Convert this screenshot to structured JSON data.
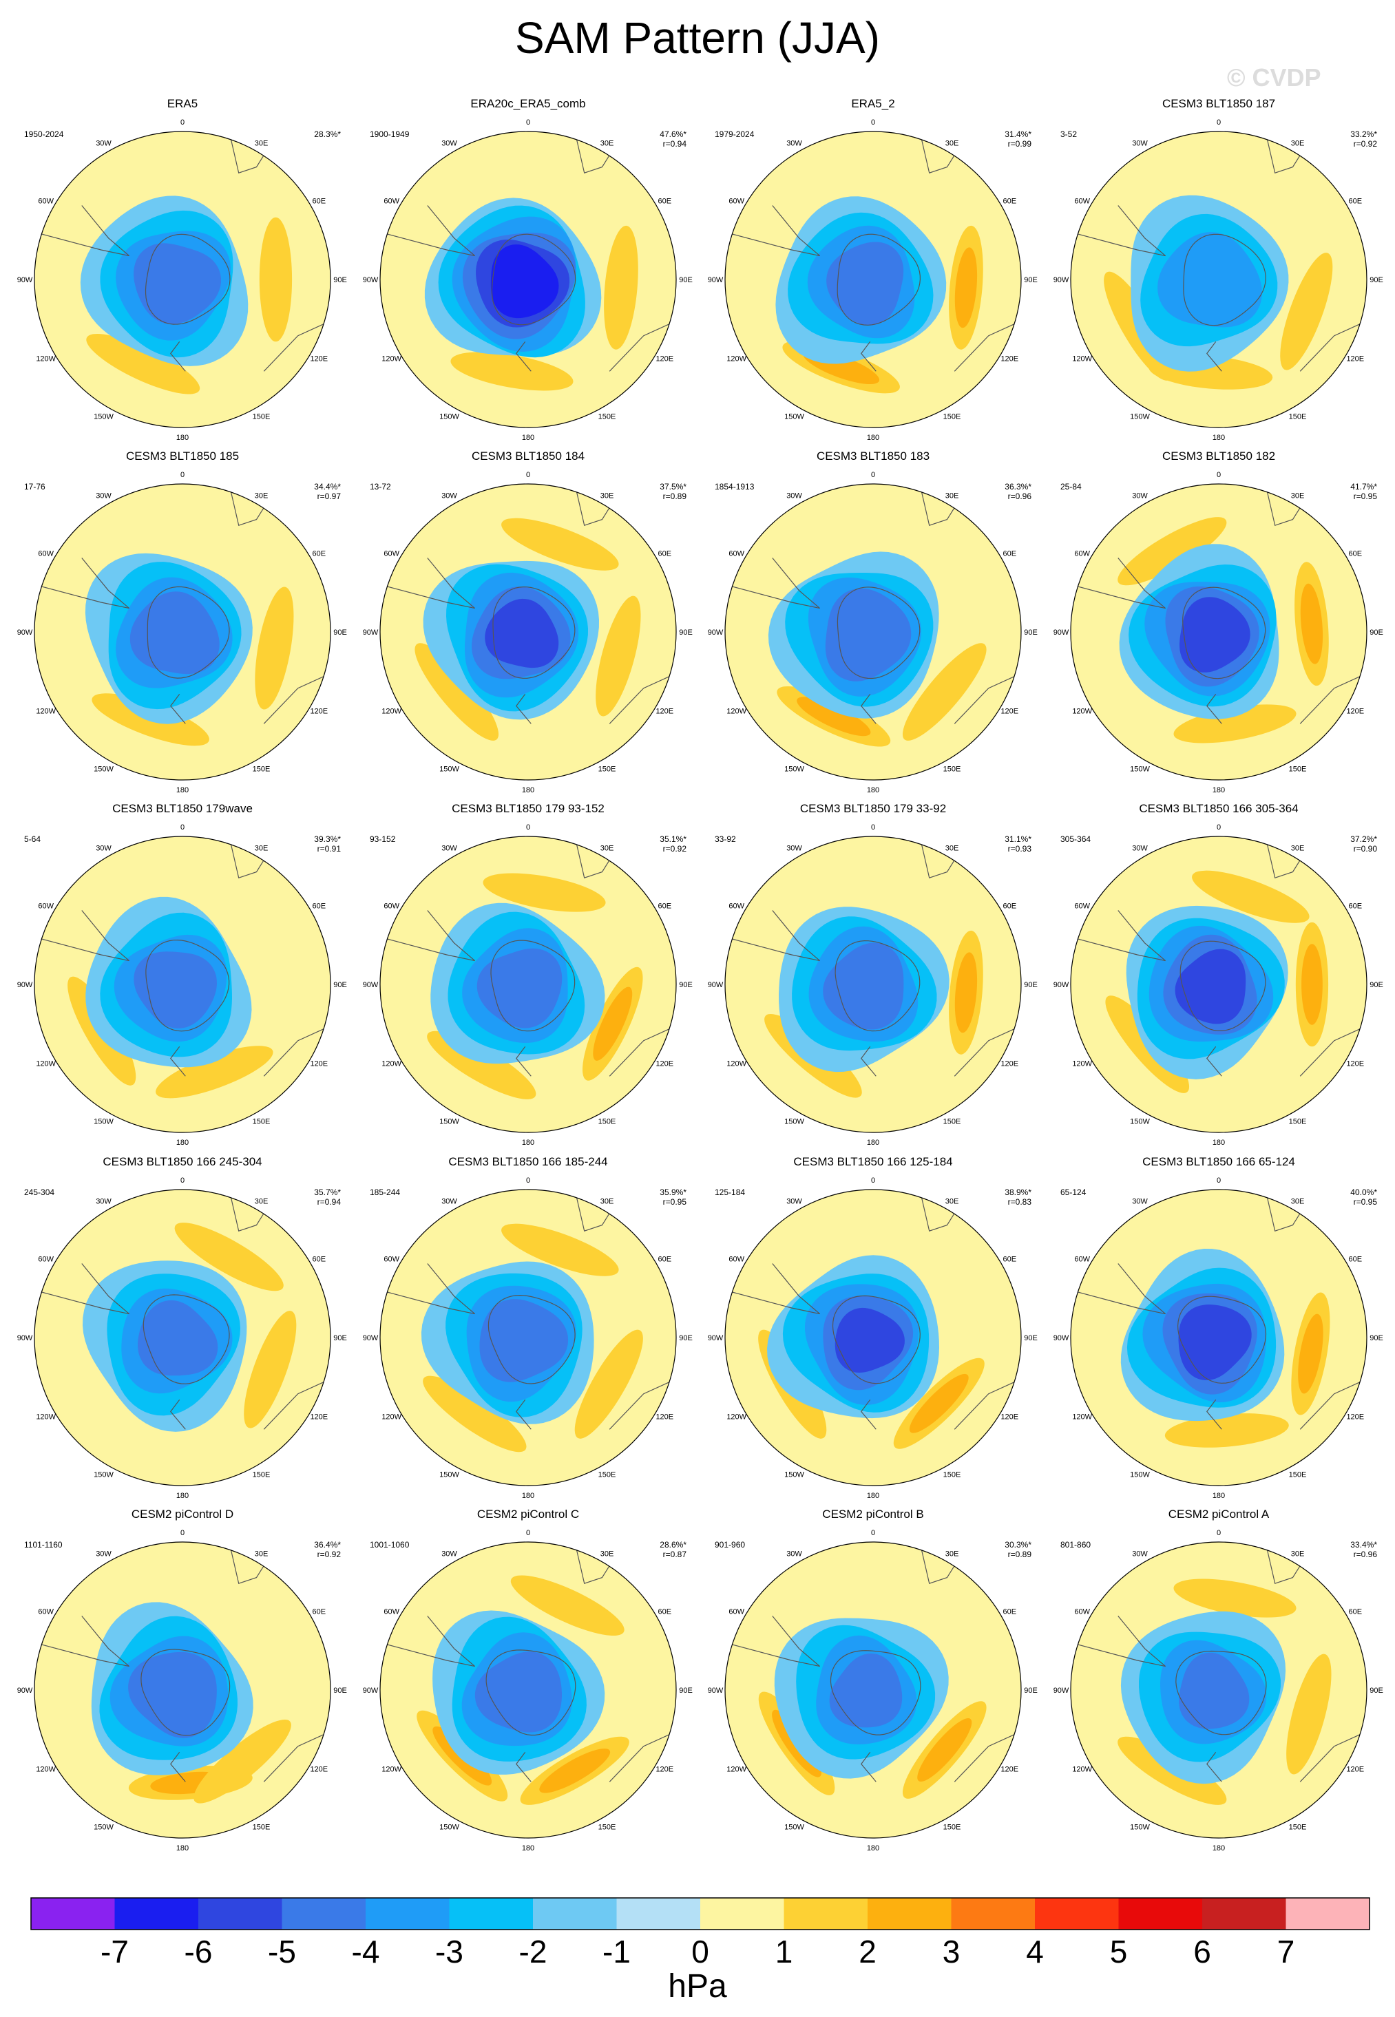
{
  "title": "SAM Pattern (JJA)",
  "watermark": "© CVDP",
  "colorbar": {
    "labels": [
      "-7",
      "-6",
      "-5",
      "-4",
      "-3",
      "-2",
      "-1",
      "0",
      "1",
      "2",
      "3",
      "4",
      "5",
      "6",
      "7"
    ],
    "colors": [
      "#8a22f0",
      "#1a1ef0",
      "#2f46e0",
      "#3a7ae8",
      "#1f9cf7",
      "#06c0f7",
      "#6ec9f3",
      "#b4e0f6",
      "#fdf5a1",
      "#fdd134",
      "#fdb00f",
      "#fd7a13",
      "#fd3510",
      "#e80a0a",
      "#c82020",
      "#fdb3b8"
    ],
    "units": "hPa"
  },
  "longitude_labels": [
    "0",
    "30E",
    "60E",
    "90E",
    "120E",
    "150E",
    "180",
    "150W",
    "120W",
    "90W",
    "60W",
    "30W"
  ],
  "chart_data": {
    "type": "heatmap",
    "title": "SAM Pattern (JJA)",
    "projection": "south polar stereographic",
    "units": "hPa",
    "contour_levels": [
      -7,
      -6,
      -5,
      -4,
      -3,
      -2,
      -1,
      0,
      1,
      2,
      3,
      4,
      5,
      6,
      7
    ],
    "panels": [
      {
        "name": "ERA5",
        "period": "1950-2024",
        "pct": "28.3%*",
        "r": "",
        "min": -4.5,
        "peaks": [
          {
            "lon": 90,
            "v": 1.5
          },
          {
            "lon": 205,
            "v": 1.4
          }
        ]
      },
      {
        "name": "ERA20c_ERA5_comb",
        "period": "1900-1949",
        "pct": "47.6%*",
        "r": "r=0.94",
        "min": -6.5,
        "peaks": [
          {
            "lon": 95,
            "v": 1.2
          },
          {
            "lon": 190,
            "v": 1.1
          }
        ]
      },
      {
        "name": "ERA5_2",
        "period": "1979-2024",
        "pct": "31.4%*",
        "r": "r=0.99",
        "min": -4.3,
        "peaks": [
          {
            "lon": 95,
            "v": 2.4
          },
          {
            "lon": 200,
            "v": 2.1
          }
        ]
      },
      {
        "name": "CESM3 BLT1850 187",
        "period": "3-52",
        "pct": "33.2%*",
        "r": "r=0.92",
        "min": -3.7,
        "peaks": [
          {
            "lon": 110,
            "v": 1.7
          },
          {
            "lon": 185,
            "v": 1.7
          },
          {
            "lon": 240,
            "v": 1.6
          }
        ]
      },
      {
        "name": "CESM3 BLT1850 185",
        "period": "17-76",
        "pct": "34.4%*",
        "r": "r=0.97",
        "min": -4.6,
        "peaks": [
          {
            "lon": 100,
            "v": 1.6
          },
          {
            "lon": 200,
            "v": 1.7
          }
        ]
      },
      {
        "name": "CESM3 BLT1850 184",
        "period": "13-72",
        "pct": "37.5%*",
        "r": "r=0.89",
        "min": -5.2,
        "peaks": [
          {
            "lon": 20,
            "v": 1.3
          },
          {
            "lon": 105,
            "v": 1.6
          },
          {
            "lon": 230,
            "v": 1.3
          }
        ]
      },
      {
        "name": "CESM3 BLT1850 183",
        "period": "1854-1913",
        "pct": "36.3%*",
        "r": "r=0.96",
        "min": -4.8,
        "peaks": [
          {
            "lon": 130,
            "v": 1.8
          },
          {
            "lon": 205,
            "v": 2.2
          }
        ]
      },
      {
        "name": "CESM3 BLT1850 182",
        "period": "25-84",
        "pct": "41.7%*",
        "r": "r=0.95",
        "min": -5.3,
        "peaks": [
          {
            "lon": 85,
            "v": 2.5
          },
          {
            "lon": 170,
            "v": 1.5
          },
          {
            "lon": 330,
            "v": 1.2
          }
        ]
      },
      {
        "name": "CESM3 BLT1850 179wave",
        "period": "5-64",
        "pct": "39.3%*",
        "r": "r=0.91",
        "min": -4.3,
        "peaks": [
          {
            "lon": 160,
            "v": 1.8
          },
          {
            "lon": 240,
            "v": 1.7
          }
        ]
      },
      {
        "name": "CESM3 BLT1850 179 93-152",
        "period": "93-152",
        "pct": "35.1%*",
        "r": "r=0.92",
        "min": -4.4,
        "peaks": [
          {
            "lon": 115,
            "v": 2.1
          },
          {
            "lon": 210,
            "v": 1.4
          },
          {
            "lon": 10,
            "v": 1.2
          }
        ]
      },
      {
        "name": "CESM3 BLT1850 179 33-92",
        "period": "33-92",
        "pct": "31.1%*",
        "r": "r=0.93",
        "min": -4.5,
        "peaks": [
          {
            "lon": 95,
            "v": 2.4
          },
          {
            "lon": 220,
            "v": 1.6
          }
        ]
      },
      {
        "name": "CESM3 BLT1850 166 305-364",
        "period": "305-364",
        "pct": "37.2%*",
        "r": "r=0.90",
        "min": -5.3,
        "peaks": [
          {
            "lon": 90,
            "v": 2.5
          },
          {
            "lon": 20,
            "v": 1.3
          },
          {
            "lon": 230,
            "v": 1.1
          }
        ]
      },
      {
        "name": "CESM3 BLT1850 166 245-304",
        "period": "245-304",
        "pct": "35.7%*",
        "r": "r=0.94",
        "min": -4.2,
        "peaks": [
          {
            "lon": 110,
            "v": 1.6
          },
          {
            "lon": 30,
            "v": 1.1
          }
        ]
      },
      {
        "name": "CESM3 BLT1850 166 185-244",
        "period": "185-244",
        "pct": "35.9%*",
        "r": "r=0.95",
        "min": -4.6,
        "peaks": [
          {
            "lon": 215,
            "v": 1.8
          },
          {
            "lon": 20,
            "v": 1.4
          },
          {
            "lon": 120,
            "v": 1.4
          }
        ]
      },
      {
        "name": "CESM3 BLT1850 166 125-184",
        "period": "125-184",
        "pct": "38.9%*",
        "r": "r=0.83",
        "min": -5.0,
        "peaks": [
          {
            "lon": 135,
            "v": 2.6
          },
          {
            "lon": 240,
            "v": 1.6
          }
        ]
      },
      {
        "name": "CESM3 BLT1850 166 65-124",
        "period": "65-124",
        "pct": "40.0%*",
        "r": "r=0.95",
        "min": -5.4,
        "peaks": [
          {
            "lon": 100,
            "v": 2.4
          },
          {
            "lon": 175,
            "v": 1.4
          }
        ]
      },
      {
        "name": "CESM2 piControl D",
        "period": "1101-1160",
        "pct": "36.4%*",
        "r": "r=0.92",
        "min": -4.7,
        "peaks": [
          {
            "lon": 175,
            "v": 2.4
          },
          {
            "lon": 140,
            "v": 1.7
          }
        ]
      },
      {
        "name": "CESM2 piControl C",
        "period": "1001-1060",
        "pct": "28.6%*",
        "r": "r=0.87",
        "min": -4.5,
        "peaks": [
          {
            "lon": 225,
            "v": 2.8
          },
          {
            "lon": 150,
            "v": 2.2
          },
          {
            "lon": 25,
            "v": 1.2
          }
        ]
      },
      {
        "name": "CESM2 piControl B",
        "period": "901-960",
        "pct": "30.3%*",
        "r": "r=0.89",
        "min": -4.0,
        "peaks": [
          {
            "lon": 130,
            "v": 2.4
          },
          {
            "lon": 235,
            "v": 2.3
          }
        ]
      },
      {
        "name": "CESM2 piControl A",
        "period": "801-860",
        "pct": "33.4%*",
        "r": "r=0.96",
        "min": -4.0,
        "peaks": [
          {
            "lon": 105,
            "v": 1.6
          },
          {
            "lon": 210,
            "v": 1.6
          },
          {
            "lon": 10,
            "v": 1.2
          }
        ]
      }
    ]
  }
}
